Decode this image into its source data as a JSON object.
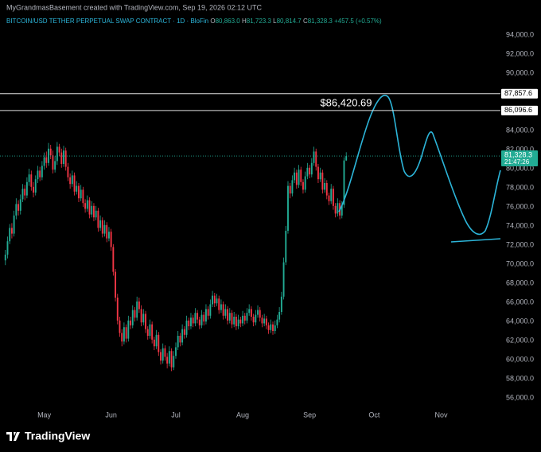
{
  "watermark": "MyGrandmasBasement created with TradingView.com, Sep 19, 2026 02:12 UTC",
  "logo": "TradingView",
  "chart_data": {
    "type": "candlestick",
    "symbol": "BITCOIN/USD TETHER PERPETUAL SWAP CONTRACT · 1D · BloFin",
    "legend": {
      "o_key": "O",
      "o": "80,863.0",
      "h_key": "H",
      "h": "81,723.3",
      "l_key": "L",
      "l": "80,814.7",
      "c_key": "C",
      "c": "81,328.3",
      "change": "+457.5 (+0.57%)"
    },
    "annotation": "$86,420.69",
    "colors": {
      "up": "#22ab94",
      "down": "#f23645",
      "drawing": "#2cb5d9"
    },
    "grid": false,
    "xlim": [
      -2.5,
      228
    ],
    "xticks": [
      {
        "value": 18,
        "label": "May"
      },
      {
        "value": 49,
        "label": "Jun"
      },
      {
        "value": 79,
        "label": "Jul"
      },
      {
        "value": 110,
        "label": "Aug"
      },
      {
        "value": 141,
        "label": "Sep"
      },
      {
        "value": 171,
        "label": "Oct"
      },
      {
        "value": 202,
        "label": "Nov"
      }
    ],
    "ylim": [
      55000,
      97500
    ],
    "yticks": [
      {
        "value": 94000,
        "label": "94,000.0"
      },
      {
        "value": 92000,
        "label": "92,000.0"
      },
      {
        "value": 90000,
        "label": "90,000.0"
      },
      {
        "value": 84000,
        "label": "84,000.0"
      },
      {
        "value": 82000,
        "label": "82,000.0"
      },
      {
        "value": 80000,
        "label": "80,000.0"
      },
      {
        "value": 78000,
        "label": "78,000.0"
      },
      {
        "value": 76000,
        "label": "76,000.0"
      },
      {
        "value": 74000,
        "label": "74,000.0"
      },
      {
        "value": 72000,
        "label": "72,000.0"
      },
      {
        "value": 70000,
        "label": "70,000.0"
      },
      {
        "value": 68000,
        "label": "68,000.0"
      },
      {
        "value": 66000,
        "label": "66,000.0"
      },
      {
        "value": 64000,
        "label": "64,000.0"
      },
      {
        "value": 62000,
        "label": "62,000.0"
      },
      {
        "value": 60000,
        "label": "60,000.0"
      },
      {
        "value": 58000,
        "label": "58,000.0"
      },
      {
        "value": 56000,
        "label": "56,000.0"
      }
    ],
    "hlines": [
      {
        "value": 87857.6,
        "label": "87,857.6"
      },
      {
        "value": 86096.6,
        "label": "86,096.6"
      }
    ],
    "last_price": {
      "value": 81328.3,
      "label": "81,328.3"
    },
    "countdown": "21:47:26",
    "candles": [
      [
        70400,
        71500,
        69900,
        71000
      ],
      [
        71000,
        72900,
        70600,
        72400
      ],
      [
        72400,
        74200,
        72100,
        73800
      ],
      [
        73800,
        74300,
        72700,
        73200
      ],
      [
        73200,
        75600,
        72900,
        75100
      ],
      [
        75100,
        76900,
        74700,
        76300
      ],
      [
        76300,
        76700,
        75100,
        75600
      ],
      [
        75600,
        77300,
        75200,
        76800
      ],
      [
        76800,
        78400,
        76500,
        77900
      ],
      [
        77900,
        78300,
        76700,
        77200
      ],
      [
        77200,
        79100,
        76900,
        78600
      ],
      [
        78600,
        80000,
        78200,
        79400
      ],
      [
        79400,
        79800,
        77700,
        78100
      ],
      [
        78100,
        78600,
        77000,
        77500
      ],
      [
        77500,
        79300,
        77200,
        78900
      ],
      [
        78900,
        80300,
        78500,
        79800
      ],
      [
        79800,
        80200,
        78700,
        79100
      ],
      [
        79100,
        80800,
        78800,
        80300
      ],
      [
        80300,
        81700,
        79900,
        81200
      ],
      [
        81200,
        81800,
        80100,
        80600
      ],
      [
        80600,
        82700,
        80300,
        82100
      ],
      [
        82100,
        82500,
        81000,
        81400
      ],
      [
        81400,
        81900,
        79500,
        79900
      ],
      [
        79900,
        81300,
        79600,
        80800
      ],
      [
        80800,
        82800,
        80400,
        82300
      ],
      [
        82300,
        82600,
        81300,
        81700
      ],
      [
        81700,
        82100,
        80100,
        80500
      ],
      [
        80500,
        82400,
        80200,
        81900
      ],
      [
        81900,
        82200,
        79800,
        80200
      ],
      [
        80200,
        80600,
        78700,
        79100
      ],
      [
        79100,
        79500,
        77900,
        78400
      ],
      [
        78400,
        79800,
        78100,
        79300
      ],
      [
        79300,
        79600,
        77200,
        77600
      ],
      [
        77600,
        78700,
        77300,
        78200
      ],
      [
        78200,
        78500,
        76500,
        76900
      ],
      [
        76900,
        78300,
        76600,
        77800
      ],
      [
        77800,
        78100,
        76000,
        76400
      ],
      [
        76400,
        76800,
        75400,
        75800
      ],
      [
        75800,
        77200,
        75500,
        76700
      ],
      [
        76700,
        77000,
        74800,
        75200
      ],
      [
        75200,
        76600,
        74900,
        76100
      ],
      [
        76100,
        76400,
        74500,
        74900
      ],
      [
        74900,
        76100,
        74600,
        75600
      ],
      [
        75600,
        75900,
        73400,
        73800
      ],
      [
        73800,
        75100,
        73500,
        74600
      ],
      [
        74600,
        74900,
        72800,
        73200
      ],
      [
        73200,
        74600,
        72900,
        74100
      ],
      [
        74100,
        74400,
        72300,
        72700
      ],
      [
        72700,
        73900,
        72400,
        73400
      ],
      [
        73400,
        73700,
        71400,
        71800
      ],
      [
        71800,
        72100,
        68800,
        69200
      ],
      [
        69200,
        69500,
        66100,
        66500
      ],
      [
        66500,
        66900,
        63700,
        64100
      ],
      [
        64100,
        64500,
        62400,
        62800
      ],
      [
        62800,
        63200,
        61400,
        61900
      ],
      [
        61900,
        63900,
        61600,
        63400
      ],
      [
        63400,
        63700,
        61800,
        62200
      ],
      [
        62200,
        64600,
        61900,
        64100
      ],
      [
        64100,
        64500,
        63200,
        63600
      ],
      [
        63600,
        65700,
        63300,
        65200
      ],
      [
        65200,
        65500,
        64000,
        64400
      ],
      [
        64400,
        66600,
        64100,
        66100
      ],
      [
        66100,
        66500,
        64900,
        65300
      ],
      [
        65300,
        65700,
        63500,
        63900
      ],
      [
        63900,
        65300,
        63600,
        64800
      ],
      [
        64800,
        65100,
        62800,
        63200
      ],
      [
        63200,
        63500,
        62100,
        62500
      ],
      [
        62500,
        64200,
        62200,
        63700
      ],
      [
        63700,
        64000,
        61700,
        62100
      ],
      [
        62100,
        62400,
        61000,
        61400
      ],
      [
        61400,
        63100,
        61100,
        62600
      ],
      [
        62600,
        62900,
        60400,
        60800
      ],
      [
        60800,
        61100,
        59500,
        59900
      ],
      [
        59900,
        61700,
        59600,
        61200
      ],
      [
        61200,
        61500,
        59900,
        60300
      ],
      [
        60300,
        60700,
        59100,
        59600
      ],
      [
        59600,
        61400,
        59300,
        60900
      ],
      [
        60900,
        61200,
        58800,
        59200
      ],
      [
        59200,
        60900,
        58900,
        60400
      ],
      [
        60400,
        61800,
        60100,
        61300
      ],
      [
        61300,
        63000,
        61000,
        62500
      ],
      [
        62500,
        62800,
        61400,
        61800
      ],
      [
        61800,
        63700,
        61500,
        63200
      ],
      [
        63200,
        63500,
        62200,
        62600
      ],
      [
        62600,
        64600,
        62300,
        64100
      ],
      [
        64100,
        64400,
        63100,
        63500
      ],
      [
        63500,
        64900,
        63200,
        64400
      ],
      [
        64400,
        64700,
        63400,
        63800
      ],
      [
        63800,
        65400,
        63500,
        64900
      ],
      [
        64900,
        65200,
        63800,
        64200
      ],
      [
        64200,
        64500,
        63200,
        63600
      ],
      [
        63600,
        65200,
        63300,
        64700
      ],
      [
        64700,
        65000,
        63600,
        64000
      ],
      [
        64000,
        65800,
        63700,
        65300
      ],
      [
        65300,
        65600,
        64200,
        64600
      ],
      [
        64600,
        66300,
        64300,
        65800
      ],
      [
        65800,
        67200,
        65500,
        66700
      ],
      [
        66700,
        67000,
        65500,
        65900
      ],
      [
        65900,
        66900,
        65600,
        66400
      ],
      [
        66400,
        66700,
        64800,
        65200
      ],
      [
        65200,
        66300,
        64900,
        65800
      ],
      [
        65800,
        66100,
        64200,
        64600
      ],
      [
        64600,
        65800,
        64300,
        65300
      ],
      [
        65300,
        65600,
        63700,
        64100
      ],
      [
        64100,
        65400,
        63800,
        64900
      ],
      [
        64900,
        65200,
        63300,
        63700
      ],
      [
        63700,
        65000,
        63400,
        64500
      ],
      [
        64500,
        64800,
        63100,
        63500
      ],
      [
        63500,
        64700,
        63200,
        64200
      ],
      [
        64200,
        64500,
        63400,
        63800
      ],
      [
        63800,
        65100,
        63500,
        64600
      ],
      [
        64600,
        64900,
        63700,
        64100
      ],
      [
        64100,
        65400,
        63800,
        64900
      ],
      [
        64900,
        65800,
        64600,
        65300
      ],
      [
        65300,
        65600,
        64100,
        64500
      ],
      [
        64500,
        64800,
        63500,
        63900
      ],
      [
        63900,
        65200,
        63600,
        64700
      ],
      [
        64700,
        65700,
        64400,
        65200
      ],
      [
        65200,
        65500,
        64000,
        64400
      ],
      [
        64400,
        64700,
        63400,
        63800
      ],
      [
        63800,
        64800,
        63500,
        64300
      ],
      [
        64300,
        64600,
        63200,
        63600
      ],
      [
        63600,
        63900,
        62700,
        63100
      ],
      [
        63100,
        64200,
        62800,
        63700
      ],
      [
        63700,
        64000,
        62600,
        63000
      ],
      [
        63000,
        64100,
        62700,
        63600
      ],
      [
        63600,
        64700,
        63300,
        64200
      ],
      [
        64200,
        65500,
        63900,
        65000
      ],
      [
        65000,
        67100,
        64700,
        66600
      ],
      [
        66600,
        70700,
        66300,
        70200
      ],
      [
        70200,
        74000,
        69900,
        73500
      ],
      [
        73500,
        78700,
        73200,
        78200
      ],
      [
        78200,
        78500,
        76900,
        77400
      ],
      [
        77400,
        79300,
        77100,
        78800
      ],
      [
        78800,
        80100,
        78500,
        79600
      ],
      [
        79600,
        79900,
        77900,
        78300
      ],
      [
        78300,
        80400,
        78000,
        79900
      ],
      [
        79900,
        80200,
        78200,
        78600
      ],
      [
        78600,
        78900,
        77400,
        77800
      ],
      [
        77800,
        79700,
        77500,
        79200
      ],
      [
        79200,
        80600,
        78900,
        80100
      ],
      [
        80100,
        80400,
        79000,
        79400
      ],
      [
        79400,
        81100,
        79100,
        80600
      ],
      [
        80600,
        82300,
        80300,
        81800
      ],
      [
        81800,
        82100,
        79800,
        80200
      ],
      [
        80200,
        80500,
        78500,
        78900
      ],
      [
        78900,
        80100,
        78600,
        79600
      ],
      [
        79600,
        79900,
        77400,
        77800
      ],
      [
        77800,
        79000,
        77500,
        78500
      ],
      [
        78500,
        78800,
        76800,
        77200
      ],
      [
        77200,
        77500,
        76200,
        76600
      ],
      [
        76600,
        78400,
        76300,
        77900
      ],
      [
        77900,
        78200,
        75700,
        76100
      ],
      [
        76100,
        76400,
        74900,
        75300
      ],
      [
        75300,
        76900,
        75000,
        76400
      ],
      [
        76400,
        76700,
        74700,
        75100
      ],
      [
        75100,
        76600,
        74800,
        76200
      ],
      [
        76200,
        81200,
        75900,
        80863
      ],
      [
        80863,
        81723.3,
        80814.7,
        81328.3
      ]
    ]
  }
}
